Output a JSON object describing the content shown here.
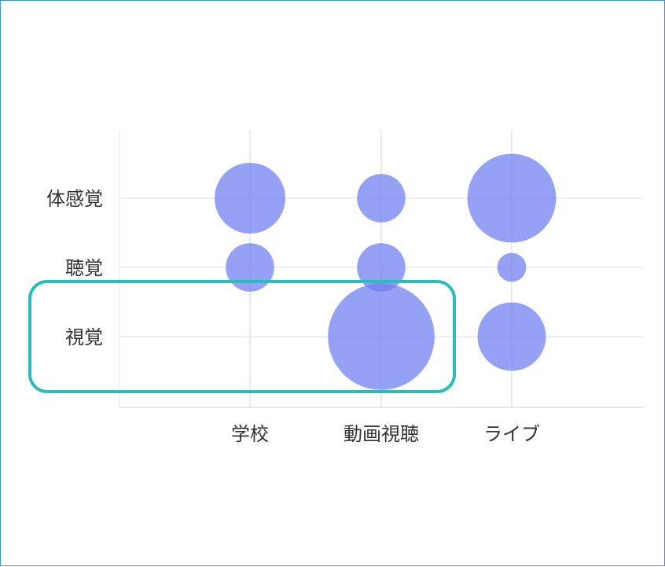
{
  "chart_data": {
    "type": "scatter",
    "subtype": "bubble",
    "title": "",
    "xlabel": "",
    "ylabel": "",
    "categories_x": [
      "学校",
      "動画視聴",
      "ライブ"
    ],
    "categories_y": [
      "視覚",
      "聴覚",
      "体感覚"
    ],
    "grid": true,
    "points": [
      {
        "x": "学校",
        "y": "体感覚",
        "size": 3
      },
      {
        "x": "動画視聴",
        "y": "体感覚",
        "size": 1.4
      },
      {
        "x": "ライブ",
        "y": "体感覚",
        "size": 4.7
      },
      {
        "x": "学校",
        "y": "聴覚",
        "size": 1.4
      },
      {
        "x": "動画視聴",
        "y": "聴覚",
        "size": 1.4
      },
      {
        "x": "ライブ",
        "y": "聴覚",
        "size": 0.5
      },
      {
        "x": "動画視聴",
        "y": "視覚",
        "size": 6.8
      },
      {
        "x": "ライブ",
        "y": "視覚",
        "size": 2.8
      }
    ],
    "highlight": {
      "row": "視覚",
      "color": "#2bbcbc"
    },
    "colors": {
      "bubble": "#6c7df0",
      "grid": "#e6e6e6",
      "axis": "#cfcfcf",
      "text": "#333333"
    }
  }
}
